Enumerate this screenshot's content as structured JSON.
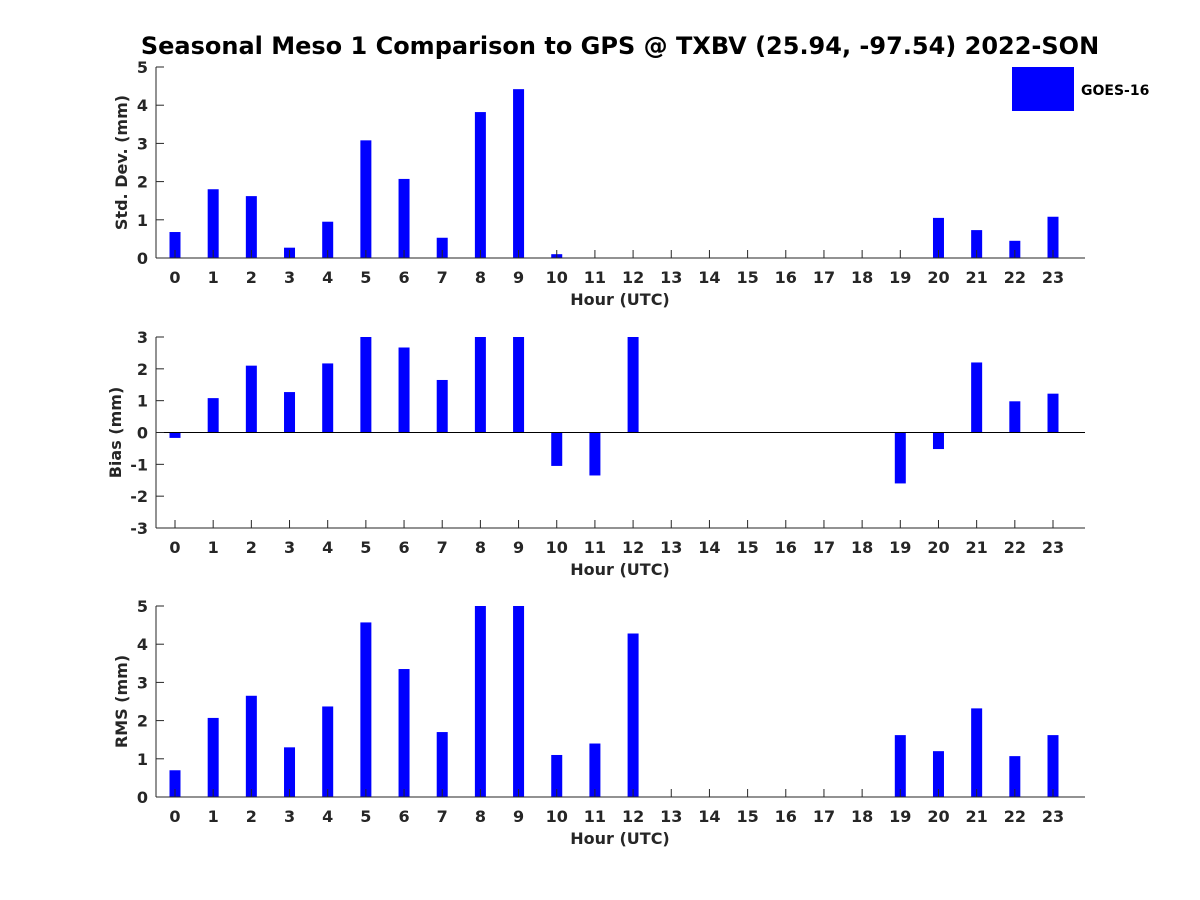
{
  "chart_data": {
    "type": "bar",
    "title": "Seasonal Meso 1 Comparison to GPS @ TXBV (25.94, -97.54) 2022-SON",
    "legend": {
      "entries": [
        "GOES-16"
      ],
      "placement": "top-right"
    },
    "bar_color": "#0000ff",
    "categories": [
      "0",
      "1",
      "2",
      "3",
      "4",
      "5",
      "6",
      "7",
      "8",
      "9",
      "10",
      "11",
      "12",
      "13",
      "14",
      "15",
      "16",
      "17",
      "18",
      "19",
      "20",
      "21",
      "22",
      "23"
    ],
    "panels": [
      {
        "xlabel": "Hour (UTC)",
        "ylabel": "Std. Dev. (mm)",
        "ylim": [
          0,
          5
        ],
        "yticks": [
          "0",
          "1",
          "2",
          "3",
          "4",
          "5"
        ],
        "series": [
          {
            "name": "GOES-16",
            "values": [
              0.68,
              1.8,
              1.62,
              0.27,
              0.95,
              3.08,
              2.07,
              0.53,
              3.82,
              4.42,
              0.1,
              null,
              null,
              null,
              null,
              null,
              null,
              null,
              null,
              null,
              1.05,
              0.73,
              0.45,
              1.08
            ]
          }
        ]
      },
      {
        "xlabel": "Hour (UTC)",
        "ylabel": "Bias (mm)",
        "ylim": [
          -3,
          3
        ],
        "yticks": [
          "-3",
          "-2",
          "-1",
          "0",
          "1",
          "2",
          "3"
        ],
        "series": [
          {
            "name": "GOES-16",
            "values": [
              -0.17,
              1.08,
              2.1,
              1.27,
              2.17,
              3.0,
              2.67,
              1.65,
              3.0,
              3.0,
              -1.05,
              -1.35,
              3.0,
              null,
              null,
              null,
              null,
              null,
              null,
              -1.6,
              -0.52,
              2.2,
              0.98,
              1.22
            ]
          }
        ]
      },
      {
        "xlabel": "Hour (UTC)",
        "ylabel": "RMS (mm)",
        "ylim": [
          0,
          5
        ],
        "yticks": [
          "0",
          "1",
          "2",
          "3",
          "4",
          "5"
        ],
        "series": [
          {
            "name": "GOES-16",
            "values": [
              0.7,
              2.07,
              2.65,
              1.3,
              2.37,
              4.57,
              3.35,
              1.7,
              5.0,
              5.0,
              1.1,
              1.4,
              4.28,
              null,
              null,
              null,
              null,
              null,
              null,
              1.62,
              1.2,
              2.32,
              1.07,
              1.62
            ]
          }
        ]
      }
    ]
  }
}
